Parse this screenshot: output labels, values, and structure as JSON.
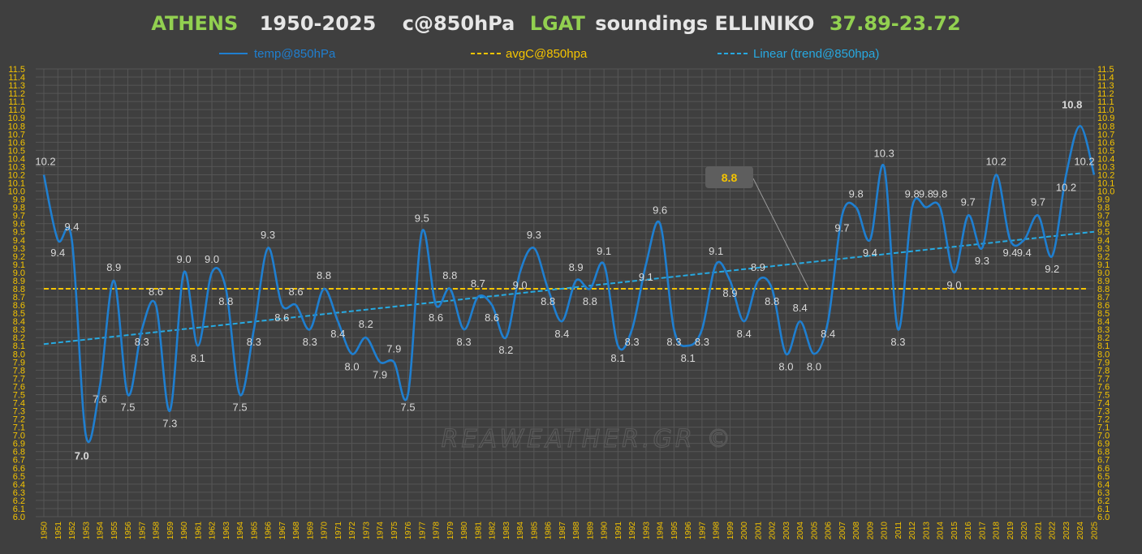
{
  "title": {
    "city": "ATHENS",
    "years": "1950-2025",
    "level": "c@850hPa",
    "station_code": "LGAT",
    "station": "soundings ELLINIKO",
    "coords": "37.89-23.72"
  },
  "colors": {
    "background": "#3f3f3f",
    "title_green": "#92d050",
    "title_white": "#e6e6e6",
    "series_line": "#1f7fd0",
    "avg_line": "#f5c400",
    "trend_line": "#27a9e1",
    "tick_yellow": "#f5c400",
    "grid": "#565656",
    "max_label": "#ff1a1a",
    "min_label": "#27a9e1"
  },
  "watermark": "REAWEATHER.GR ©",
  "callout_avg": "8.8",
  "chart_data": {
    "type": "line",
    "x": [
      1950,
      1951,
      1952,
      1953,
      1954,
      1955,
      1956,
      1957,
      1958,
      1959,
      1960,
      1961,
      1962,
      1963,
      1964,
      1965,
      1966,
      1967,
      1968,
      1969,
      1970,
      1971,
      1972,
      1973,
      1974,
      1975,
      1976,
      1977,
      1978,
      1979,
      1980,
      1981,
      1982,
      1983,
      1984,
      1985,
      1986,
      1987,
      1988,
      1989,
      1990,
      1991,
      1992,
      1993,
      1994,
      1995,
      1996,
      1997,
      1998,
      1999,
      2000,
      2001,
      2002,
      2003,
      2004,
      2005,
      2006,
      2007,
      2008,
      2009,
      2010,
      2011,
      2012,
      2013,
      2014,
      2015,
      2016,
      2017,
      2018,
      2019,
      2020,
      2021,
      2022,
      2023,
      2024,
      2025
    ],
    "series": [
      {
        "name": "temp@850hPa",
        "values": [
          10.2,
          9.4,
          9.4,
          7.0,
          7.6,
          8.9,
          7.5,
          8.3,
          8.6,
          7.3,
          9.0,
          8.1,
          9.0,
          8.8,
          7.5,
          8.3,
          9.3,
          8.6,
          8.6,
          8.3,
          8.8,
          8.4,
          8.0,
          8.2,
          7.9,
          7.9,
          7.5,
          9.5,
          8.6,
          8.8,
          8.3,
          8.7,
          8.6,
          8.2,
          9.0,
          9.3,
          8.8,
          8.4,
          8.9,
          8.8,
          9.1,
          8.1,
          8.3,
          9.1,
          9.6,
          8.3,
          8.1,
          8.3,
          9.1,
          8.9,
          8.4,
          8.9,
          8.8,
          8.0,
          8.4,
          8.0,
          8.4,
          9.7,
          9.8,
          9.4,
          10.3,
          8.3,
          9.8,
          9.8,
          9.8,
          9.0,
          9.7,
          9.3,
          10.2,
          9.4,
          9.4,
          9.7,
          9.2,
          10.2,
          10.8,
          10.2
        ]
      },
      {
        "name": "avgC@850hpa",
        "value": 8.8
      },
      {
        "name": "Linear (trend@850hpa)",
        "start": [
          1950,
          8.12
        ],
        "end": [
          2025,
          9.5
        ]
      }
    ],
    "ylim": [
      6.0,
      11.5
    ],
    "ystep": 0.1,
    "max_label": "10.8",
    "min_label": "7.0",
    "grid": true,
    "legend": "top"
  }
}
